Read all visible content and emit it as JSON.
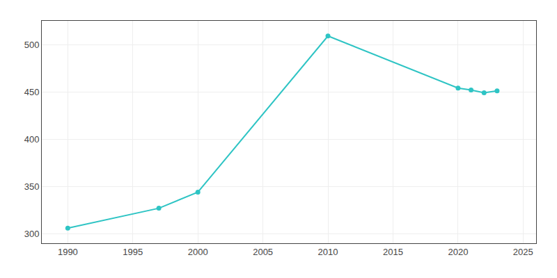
{
  "chart_data": {
    "type": "line",
    "x": [
      1990,
      1997,
      2000,
      2010,
      2020,
      2021,
      2022,
      2023
    ],
    "values": [
      306,
      327,
      344,
      509,
      454,
      452,
      449,
      451
    ],
    "color": "#2EC4C4",
    "marker": "circle",
    "xlim": [
      1988,
      2026
    ],
    "xticks": [
      1990,
      1995,
      2000,
      2005,
      2010,
      2015,
      2020,
      2025
    ],
    "ylim": [
      290,
      525
    ],
    "yticks": [
      300,
      350,
      400,
      450,
      500
    ],
    "grid": true
  }
}
